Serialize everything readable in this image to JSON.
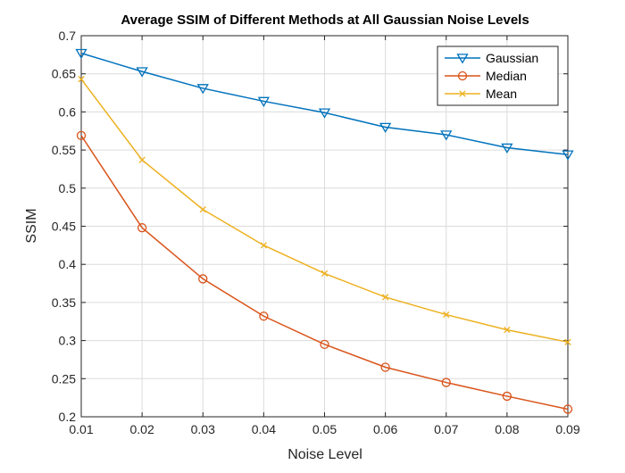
{
  "chart_data": {
    "type": "line",
    "title": "Average SSIM of Different Methods at All Gaussian Noise Levels",
    "xlabel": "Noise Level",
    "ylabel": "SSIM",
    "xlim": [
      0.01,
      0.09
    ],
    "ylim": [
      0.2,
      0.7
    ],
    "x": [
      0.01,
      0.02,
      0.03,
      0.04,
      0.05,
      0.06,
      0.07,
      0.08,
      0.09
    ],
    "x_tick_labels": [
      "0.01",
      "0.02",
      "0.03",
      "0.04",
      "0.05",
      "0.06",
      "0.07",
      "0.08",
      "0.09"
    ],
    "y_ticks": [
      0.2,
      0.25,
      0.3,
      0.35,
      0.4,
      0.45,
      0.5,
      0.55,
      0.6,
      0.65,
      0.7
    ],
    "y_tick_labels": [
      "0.2",
      "0.25",
      "0.3",
      "0.35",
      "0.4",
      "0.45",
      "0.5",
      "0.55",
      "0.6",
      "0.65",
      "0.7"
    ],
    "grid": true,
    "legend_position": "top-right",
    "series": [
      {
        "name": "Gaussian",
        "color": "#0072BD",
        "marker": "triangle-down",
        "values": [
          0.677,
          0.653,
          0.631,
          0.614,
          0.599,
          0.58,
          0.57,
          0.553,
          0.544
        ]
      },
      {
        "name": "Median",
        "color": "#D95319",
        "marker": "circle",
        "values": [
          0.569,
          0.448,
          0.381,
          0.332,
          0.295,
          0.265,
          0.245,
          0.227,
          0.21
        ]
      },
      {
        "name": "Mean",
        "color": "#EDB120",
        "marker": "x",
        "values": [
          0.643,
          0.537,
          0.472,
          0.425,
          0.388,
          0.357,
          0.334,
          0.314,
          0.298
        ]
      }
    ]
  }
}
